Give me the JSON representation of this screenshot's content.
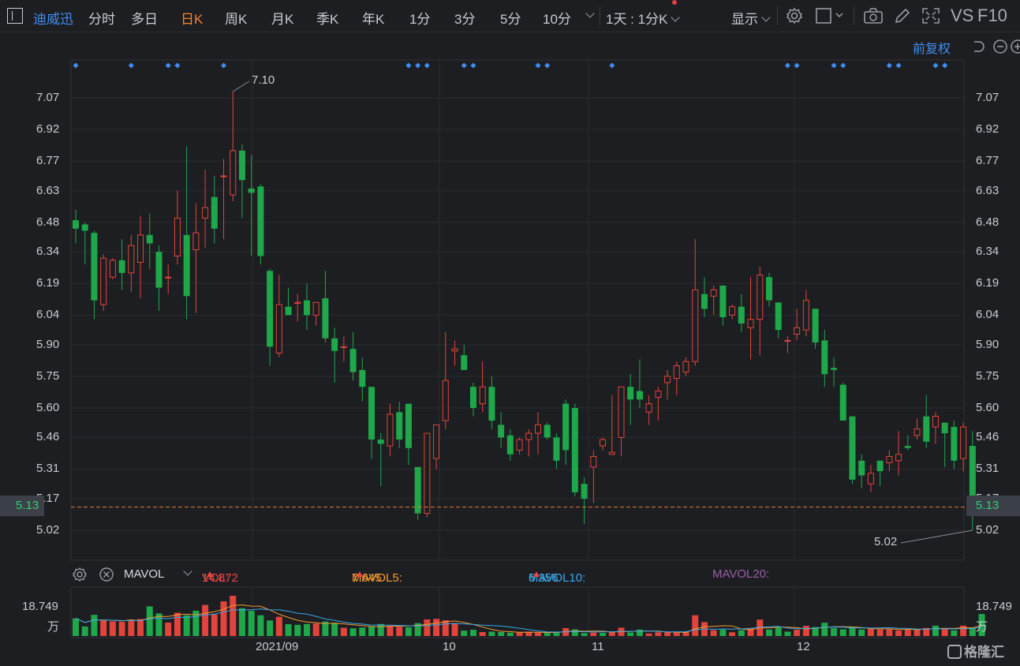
{
  "toolbar": {
    "stock_name": "迪威迅",
    "periods": [
      "分时",
      "多日",
      "日K",
      "周K",
      "月K",
      "季K",
      "年K",
      "1分",
      "3分",
      "5分",
      "10分"
    ],
    "active_period": "日K",
    "interval_select": "1天 : 1分K",
    "display_label": "显示",
    "vs_label": "VS",
    "f10_label": "F10",
    "adjust_label": "前复权"
  },
  "price_axis": {
    "ticks": [
      "7.07",
      "6.92",
      "6.77",
      "6.63",
      "6.48",
      "6.34",
      "6.19",
      "6.04",
      "5.90",
      "5.75",
      "5.60",
      "5.46",
      "5.31",
      "5.17",
      "5.02"
    ],
    "current_price": "5.13",
    "high_label": "7.10",
    "low_label": "5.02"
  },
  "indicator": {
    "name": "MAVOL",
    "vol_label": "VOL:",
    "vol_value": "14.872",
    "mavol5_label": "MAVOL5:",
    "mavol5_value": "7.645",
    "mavol10_label": "MAVOL10:",
    "mavol10_value": "6.356",
    "mavol20_label": "MAVOL20:",
    "scale_value": "18.749",
    "scale_unit": "万"
  },
  "x_axis": {
    "labels": [
      "2021/09",
      "10",
      "11",
      "12"
    ]
  },
  "colors": {
    "up": "#e2443b",
    "down": "#1ea84a",
    "ma5": "#f39a2e",
    "ma10": "#38a8e8",
    "ma20": "#9a5fa4",
    "accent": "#3f8ef0",
    "current_line": "#e07a3a"
  },
  "watermark": "格隆汇",
  "chart_data": {
    "type": "candlestick",
    "ylim": [
      5.02,
      7.1
    ],
    "candles": [
      [
        6.49,
        6.45,
        6.54,
        6.38
      ],
      [
        6.47,
        6.44,
        6.48,
        6.28
      ],
      [
        6.43,
        6.11,
        6.44,
        6.02
      ],
      [
        6.09,
        6.31,
        6.33,
        6.06
      ],
      [
        6.22,
        6.3,
        6.31,
        6.21
      ],
      [
        6.3,
        6.24,
        6.4,
        6.16
      ],
      [
        6.24,
        6.37,
        6.42,
        6.15
      ],
      [
        6.29,
        6.42,
        6.51,
        6.12
      ],
      [
        6.42,
        6.38,
        6.52,
        6.26
      ],
      [
        6.34,
        6.17,
        6.37,
        6.06
      ],
      [
        6.22,
        6.22,
        6.28,
        6.14
      ],
      [
        6.32,
        6.5,
        6.63,
        6.28
      ],
      [
        6.42,
        6.13,
        6.84,
        6.02
      ],
      [
        6.35,
        6.43,
        6.57,
        6.05
      ],
      [
        6.5,
        6.55,
        6.73,
        6.36
      ],
      [
        6.6,
        6.45,
        6.7,
        6.38
      ],
      [
        6.7,
        6.7,
        6.78,
        6.4
      ],
      [
        6.61,
        6.82,
        7.1,
        6.58
      ],
      [
        6.82,
        6.68,
        6.85,
        6.5
      ],
      [
        6.64,
        6.62,
        6.8,
        6.32
      ],
      [
        6.65,
        6.32,
        6.66,
        6.28
      ],
      [
        6.25,
        5.89,
        6.26,
        5.8
      ],
      [
        5.86,
        6.09,
        6.23,
        5.84
      ],
      [
        6.08,
        6.04,
        6.17,
        6.04
      ],
      [
        6.1,
        6.1,
        6.14,
        6.01
      ],
      [
        6.11,
        6.04,
        6.19,
        5.97
      ],
      [
        6.04,
        6.1,
        6.1,
        5.99
      ],
      [
        6.12,
        5.93,
        6.25,
        5.91
      ],
      [
        5.93,
        5.87,
        5.98,
        5.72
      ],
      [
        5.89,
        5.89,
        5.94,
        5.82
      ],
      [
        5.88,
        5.77,
        5.96,
        5.73
      ],
      [
        5.78,
        5.7,
        5.84,
        5.63
      ],
      [
        5.7,
        5.45,
        5.7,
        5.36
      ],
      [
        5.45,
        5.43,
        5.48,
        5.23
      ],
      [
        5.42,
        5.57,
        5.62,
        5.37
      ],
      [
        5.58,
        5.45,
        5.63,
        5.41
      ],
      [
        5.62,
        5.41,
        5.62,
        5.33
      ],
      [
        5.32,
        5.1,
        5.32,
        5.07
      ],
      [
        5.1,
        5.48,
        5.48,
        5.08
      ],
      [
        5.36,
        5.52,
        5.52,
        5.31
      ],
      [
        5.54,
        5.73,
        5.96,
        5.5
      ],
      [
        5.87,
        5.88,
        5.92,
        5.8
      ],
      [
        5.85,
        5.78,
        5.9,
        5.78
      ],
      [
        5.7,
        5.6,
        5.72,
        5.56
      ],
      [
        5.62,
        5.7,
        5.82,
        5.58
      ],
      [
        5.7,
        5.54,
        5.75,
        5.5
      ],
      [
        5.52,
        5.46,
        5.58,
        5.41
      ],
      [
        5.47,
        5.38,
        5.5,
        5.35
      ],
      [
        5.4,
        5.45,
        5.46,
        5.38
      ],
      [
        5.45,
        5.48,
        5.5,
        5.37
      ],
      [
        5.48,
        5.52,
        5.58,
        5.38
      ],
      [
        5.52,
        5.46,
        5.53,
        5.45
      ],
      [
        5.46,
        5.35,
        5.48,
        5.31
      ],
      [
        5.62,
        5.4,
        5.64,
        5.33
      ],
      [
        5.6,
        5.2,
        5.62,
        5.18
      ],
      [
        5.24,
        5.17,
        5.27,
        5.05
      ],
      [
        5.32,
        5.37,
        5.4,
        5.15
      ],
      [
        5.42,
        5.45,
        5.46,
        5.4
      ],
      [
        5.38,
        5.39,
        5.66,
        5.38
      ],
      [
        5.46,
        5.7,
        5.7,
        5.37
      ],
      [
        5.7,
        5.64,
        5.76,
        5.52
      ],
      [
        5.68,
        5.64,
        5.83,
        5.6
      ],
      [
        5.58,
        5.62,
        5.66,
        5.52
      ],
      [
        5.65,
        5.68,
        5.7,
        5.54
      ],
      [
        5.72,
        5.75,
        5.78,
        5.64
      ],
      [
        5.74,
        5.8,
        5.82,
        5.66
      ],
      [
        5.77,
        5.82,
        5.84,
        5.75
      ],
      [
        5.82,
        6.16,
        6.4,
        5.8
      ],
      [
        6.14,
        6.07,
        6.22,
        6.03
      ],
      [
        6.13,
        6.16,
        6.18,
        6.04
      ],
      [
        6.18,
        6.03,
        6.18,
        5.99
      ],
      [
        6.04,
        6.08,
        6.09,
        6.02
      ],
      [
        6.08,
        6.0,
        6.14,
        5.96
      ],
      [
        5.98,
        6.02,
        6.22,
        5.83
      ],
      [
        6.02,
        6.23,
        6.27,
        5.85
      ],
      [
        6.22,
        6.11,
        6.24,
        6.08
      ],
      [
        6.1,
        5.97,
        6.1,
        5.93
      ],
      [
        5.92,
        5.92,
        5.94,
        5.86
      ],
      [
        5.95,
        5.98,
        6.07,
        5.92
      ],
      [
        5.97,
        6.11,
        6.16,
        5.94
      ],
      [
        6.07,
        5.91,
        6.07,
        5.88
      ],
      [
        5.92,
        5.76,
        5.97,
        5.7
      ],
      [
        5.79,
        5.78,
        5.84,
        5.7
      ],
      [
        5.71,
        5.54,
        5.72,
        5.54
      ],
      [
        5.56,
        5.26,
        5.56,
        5.24
      ],
      [
        5.35,
        5.28,
        5.38,
        5.22
      ],
      [
        5.24,
        5.29,
        5.33,
        5.2
      ],
      [
        5.35,
        5.3,
        5.35,
        5.23
      ],
      [
        5.34,
        5.37,
        5.4,
        5.3
      ],
      [
        5.35,
        5.38,
        5.49,
        5.28
      ],
      [
        5.42,
        5.41,
        5.47,
        5.4
      ],
      [
        5.47,
        5.5,
        5.55,
        5.45
      ],
      [
        5.56,
        5.44,
        5.66,
        5.41
      ],
      [
        5.51,
        5.56,
        5.58,
        5.43
      ],
      [
        5.53,
        5.48,
        5.53,
        5.32
      ],
      [
        5.51,
        5.35,
        5.54,
        5.31
      ],
      [
        5.36,
        5.51,
        5.53,
        5.3
      ],
      [
        5.42,
        5.13,
        5.49,
        5.02
      ]
    ],
    "volume": [
      [
        8.5,
        "d"
      ],
      [
        4.6,
        "d"
      ],
      [
        10.2,
        "d"
      ],
      [
        7.6,
        "u"
      ],
      [
        7.1,
        "u"
      ],
      [
        6.8,
        "u"
      ],
      [
        7.2,
        "u"
      ],
      [
        8.2,
        "u"
      ],
      [
        14.3,
        "d"
      ],
      [
        10.9,
        "d"
      ],
      [
        6.5,
        "u"
      ],
      [
        11.2,
        "u"
      ],
      [
        10.0,
        "d"
      ],
      [
        12.2,
        "d"
      ],
      [
        15.0,
        "u"
      ],
      [
        10.4,
        "u"
      ],
      [
        16.7,
        "u"
      ],
      [
        19.4,
        "u"
      ],
      [
        13.4,
        "d"
      ],
      [
        12.2,
        "d"
      ],
      [
        10.0,
        "d"
      ],
      [
        7.5,
        "d"
      ],
      [
        9.3,
        "u"
      ],
      [
        5.7,
        "d"
      ],
      [
        5.4,
        "d"
      ],
      [
        5.8,
        "d"
      ],
      [
        6.0,
        "u"
      ],
      [
        7.0,
        "d"
      ],
      [
        6.4,
        "d"
      ],
      [
        4.0,
        "u"
      ],
      [
        3.7,
        "d"
      ],
      [
        4.1,
        "d"
      ],
      [
        4.7,
        "d"
      ],
      [
        5.8,
        "d"
      ],
      [
        4.9,
        "u"
      ],
      [
        4.5,
        "u"
      ],
      [
        4.2,
        "d"
      ],
      [
        6.2,
        "d"
      ],
      [
        8.0,
        "u"
      ],
      [
        8.3,
        "u"
      ],
      [
        7.6,
        "u"
      ],
      [
        6.3,
        "u"
      ],
      [
        2.6,
        "d"
      ],
      [
        3.0,
        "d"
      ],
      [
        1.9,
        "u"
      ],
      [
        2.1,
        "d"
      ],
      [
        1.9,
        "d"
      ],
      [
        1.6,
        "d"
      ],
      [
        1.7,
        "u"
      ],
      [
        2.1,
        "u"
      ],
      [
        1.6,
        "u"
      ],
      [
        1.5,
        "d"
      ],
      [
        1.7,
        "d"
      ],
      [
        3.8,
        "u"
      ],
      [
        3.2,
        "d"
      ],
      [
        1.4,
        "d"
      ],
      [
        1.7,
        "u"
      ],
      [
        1.5,
        "d"
      ],
      [
        1.9,
        "u"
      ],
      [
        4.0,
        "u"
      ],
      [
        1.7,
        "d"
      ],
      [
        3.1,
        "d"
      ],
      [
        1.2,
        "u"
      ],
      [
        1.8,
        "u"
      ],
      [
        1.8,
        "u"
      ],
      [
        1.7,
        "u"
      ],
      [
        2.1,
        "u"
      ],
      [
        10.0,
        "u"
      ],
      [
        6.7,
        "u"
      ],
      [
        2.8,
        "u"
      ],
      [
        3.1,
        "d"
      ],
      [
        1.8,
        "u"
      ],
      [
        2.8,
        "d"
      ],
      [
        3.9,
        "u"
      ],
      [
        7.9,
        "u"
      ],
      [
        3.1,
        "d"
      ],
      [
        4.1,
        "d"
      ],
      [
        2.1,
        "d"
      ],
      [
        3.0,
        "u"
      ],
      [
        4.9,
        "u"
      ],
      [
        4.3,
        "d"
      ],
      [
        6.4,
        "d"
      ],
      [
        3.8,
        "d"
      ],
      [
        3.2,
        "d"
      ],
      [
        4.1,
        "d"
      ],
      [
        3.1,
        "d"
      ],
      [
        3.7,
        "u"
      ],
      [
        3.2,
        "u"
      ],
      [
        3.2,
        "u"
      ],
      [
        2.7,
        "u"
      ],
      [
        3.2,
        "u"
      ],
      [
        3.3,
        "u"
      ],
      [
        3.9,
        "u"
      ],
      [
        5.0,
        "d"
      ],
      [
        3.3,
        "u"
      ],
      [
        2.7,
        "d"
      ],
      [
        5.0,
        "u"
      ],
      [
        3.8,
        "d"
      ],
      [
        10.6,
        "d"
      ]
    ],
    "markers_at": [
      0,
      6,
      10,
      11,
      16,
      36,
      37,
      38,
      42,
      43,
      50,
      51,
      58,
      77,
      78,
      82,
      83,
      88,
      89,
      93,
      94
    ]
  }
}
